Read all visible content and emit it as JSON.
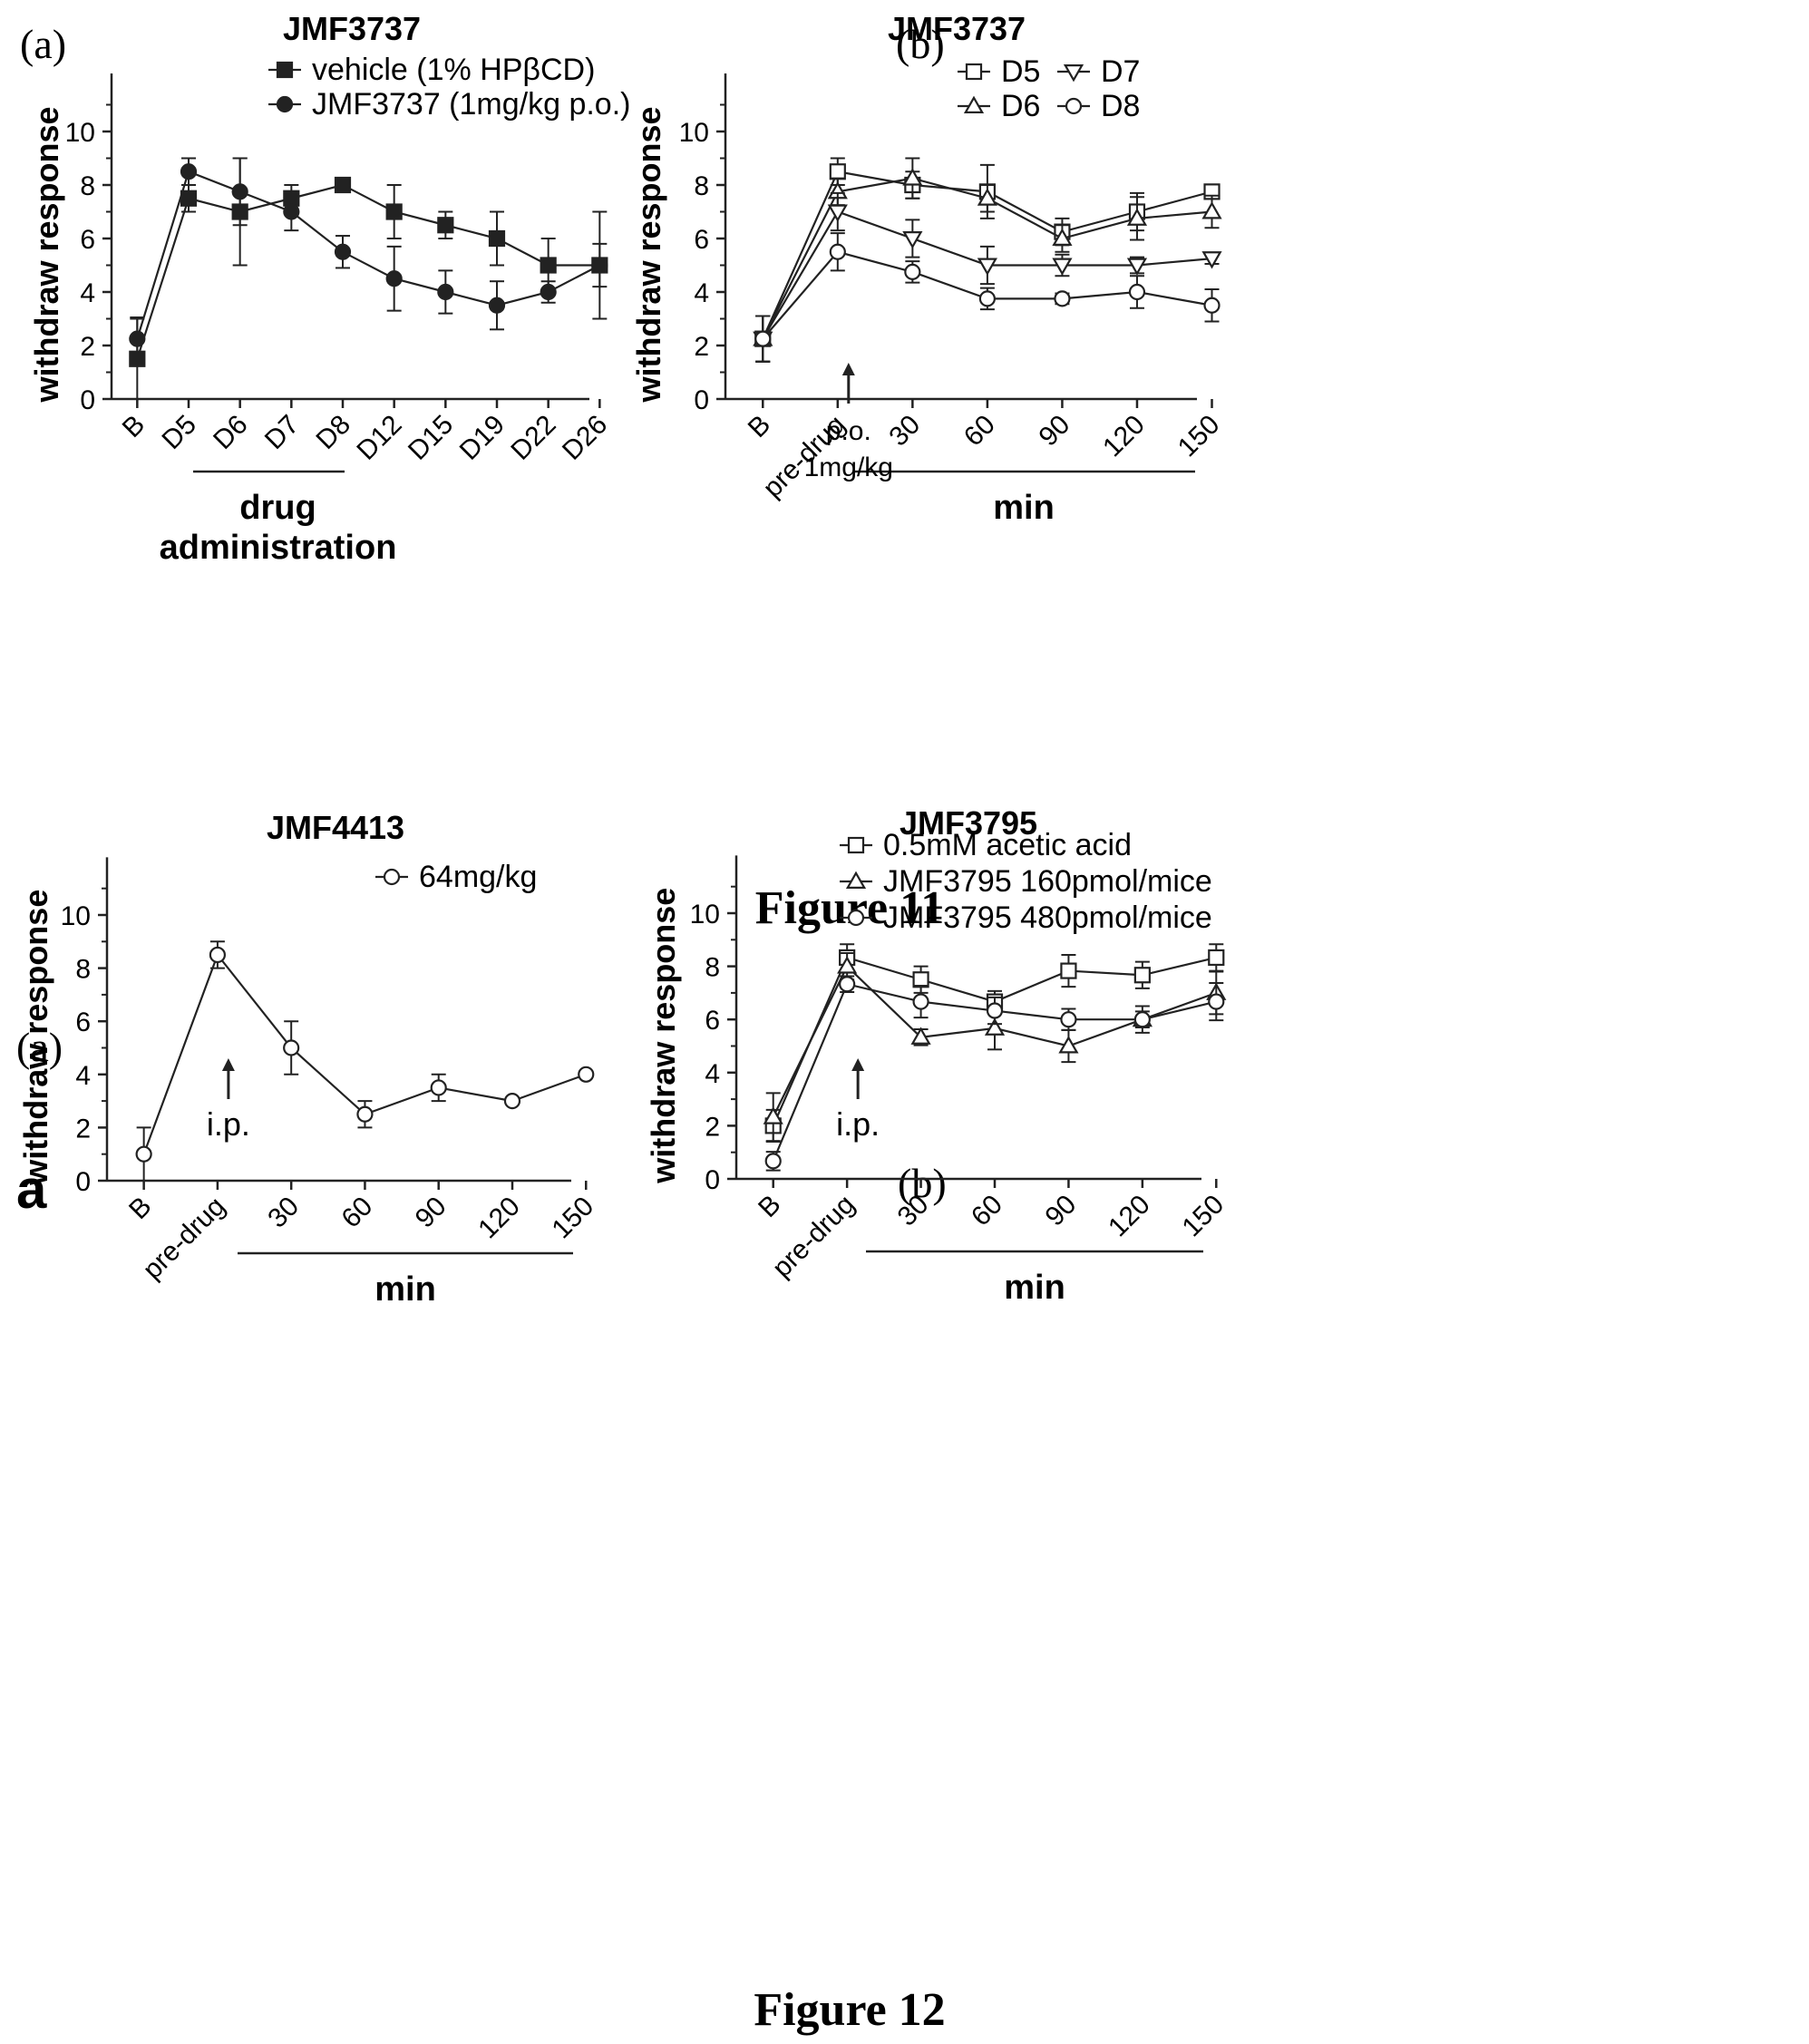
{
  "figure11": {
    "caption": "Figure 11",
    "panel_a_letter": "(a)",
    "panel_b_letter": "(b)"
  },
  "figure12": {
    "caption": "Figure 12",
    "section_letter": "(a)",
    "panel_a_letter": "a",
    "panel_b_letter": "(b)"
  },
  "chart_data": [
    {
      "id": "fig11a",
      "type": "line",
      "title": "JMF3737",
      "xlabel": "",
      "ylabel": "withdraw response",
      "ylim": [
        0,
        12
      ],
      "yticks": [
        "0",
        "2",
        "4",
        "6",
        "8",
        "10"
      ],
      "categories": [
        "B",
        "D5",
        "D6",
        "D7",
        "D8",
        "D12",
        "D15",
        "D19",
        "D22",
        "D26"
      ],
      "bracket_label_lines": [
        "drug",
        "administration"
      ],
      "legend_position": "top-center",
      "series": [
        {
          "name": "vehicle (1% HPβCD)",
          "marker": "square-filled",
          "values": [
            1.5,
            7.5,
            7.0,
            7.5,
            8.0,
            7.0,
            6.5,
            6.0,
            5.0,
            5.0
          ],
          "errors": [
            1.5,
            0.5,
            2.0,
            0.5,
            0.1,
            1.0,
            0.5,
            1.0,
            1.0,
            2.0
          ]
        },
        {
          "name": "JMF3737 (1mg/kg p.o.)",
          "marker": "circle-filled",
          "values": [
            2.25,
            8.5,
            7.75,
            7.0,
            5.5,
            4.5,
            4.0,
            3.5,
            4.0,
            5.0
          ],
          "errors": [
            0.8,
            0.5,
            1.25,
            0.7,
            0.6,
            1.2,
            0.8,
            0.9,
            0.4,
            0.8
          ]
        }
      ]
    },
    {
      "id": "fig11b",
      "type": "line",
      "title": "JMF3737",
      "xlabel": "min",
      "ylabel": "withdraw response",
      "ylim": [
        0,
        12
      ],
      "yticks": [
        "0",
        "2",
        "4",
        "6",
        "8",
        "10"
      ],
      "categories": [
        "B",
        "pre-drug",
        "30",
        "60",
        "90",
        "120",
        "150"
      ],
      "annotation_lines": [
        "p.o.",
        "1mg/kg"
      ],
      "legend_position": "top-right",
      "series": [
        {
          "name": "D5",
          "marker": "square-open",
          "values": [
            2.25,
            8.5,
            8.0,
            7.75,
            6.25,
            7.0,
            7.75
          ],
          "errors": [
            0.85,
            0.5,
            0.5,
            1.0,
            0.5,
            0.7,
            0.2
          ]
        },
        {
          "name": "D6",
          "marker": "triangle-up-open",
          "values": [
            2.25,
            7.75,
            8.25,
            7.5,
            6.0,
            6.75,
            7.0
          ],
          "errors": [
            0.85,
            0.5,
            0.75,
            0.5,
            0.5,
            0.8,
            0.6
          ]
        },
        {
          "name": "D7",
          "marker": "triangle-down-open",
          "values": [
            2.25,
            7.0,
            6.0,
            5.0,
            5.0,
            5.0,
            5.25
          ],
          "errors": [
            0.85,
            0.7,
            0.7,
            0.7,
            0.4,
            0.3,
            0.2
          ]
        },
        {
          "name": "D8",
          "marker": "circle-open",
          "values": [
            2.25,
            5.5,
            4.75,
            3.75,
            3.75,
            4.0,
            3.5
          ],
          "errors": [
            0.85,
            0.7,
            0.4,
            0.4,
            0.2,
            0.6,
            0.6
          ]
        }
      ]
    },
    {
      "id": "fig12a",
      "type": "line",
      "title": "JMF4413",
      "xlabel": "min",
      "ylabel": "withdraw response",
      "ylim": [
        0,
        12
      ],
      "yticks": [
        "0",
        "2",
        "4",
        "6",
        "8",
        "10"
      ],
      "categories": [
        "B",
        "pre-drug",
        "30",
        "60",
        "90",
        "120",
        "150"
      ],
      "annotation_lines": [
        "i.p."
      ],
      "legend_position": "top-right",
      "series": [
        {
          "name": "64mg/kg",
          "marker": "circle-open",
          "values": [
            1.0,
            8.5,
            5.0,
            2.5,
            3.5,
            3.0,
            4.0
          ],
          "errors": [
            1.0,
            0.5,
            1.0,
            0.5,
            0.5,
            0.0,
            0.0
          ]
        }
      ]
    },
    {
      "id": "fig12b",
      "type": "line",
      "title": "JMF3795",
      "xlabel": "min",
      "ylabel": "withdraw response",
      "ylim": [
        0,
        12
      ],
      "yticks": [
        "0",
        "2",
        "4",
        "6",
        "8",
        "10"
      ],
      "categories": [
        "B",
        "pre-drug",
        "30",
        "60",
        "90",
        "120",
        "150"
      ],
      "annotation_lines": [
        "i.p."
      ],
      "legend_position": "top-right",
      "series": [
        {
          "name": "0.5mM acetic acid",
          "marker": "square-open",
          "values": [
            2.0,
            8.33,
            7.5,
            6.67,
            7.83,
            7.67,
            8.33
          ],
          "errors": [
            0.6,
            0.5,
            0.5,
            0.4,
            0.6,
            0.5,
            0.5
          ]
        },
        {
          "name": "JMF3795 160pmol/mice",
          "marker": "triangle-up-open",
          "values": [
            2.33,
            8.0,
            5.33,
            5.67,
            5.0,
            6.0,
            7.0
          ],
          "errors": [
            0.9,
            0.5,
            0.3,
            0.8,
            0.6,
            0.5,
            0.8
          ]
        },
        {
          "name": "JMF3795 480pmol/mice",
          "marker": "circle-open",
          "values": [
            0.67,
            7.33,
            6.67,
            6.33,
            6.0,
            6.0,
            6.67
          ],
          "errors": [
            0.35,
            0.3,
            0.6,
            0.5,
            0.4,
            0.3,
            0.7
          ]
        }
      ]
    }
  ]
}
